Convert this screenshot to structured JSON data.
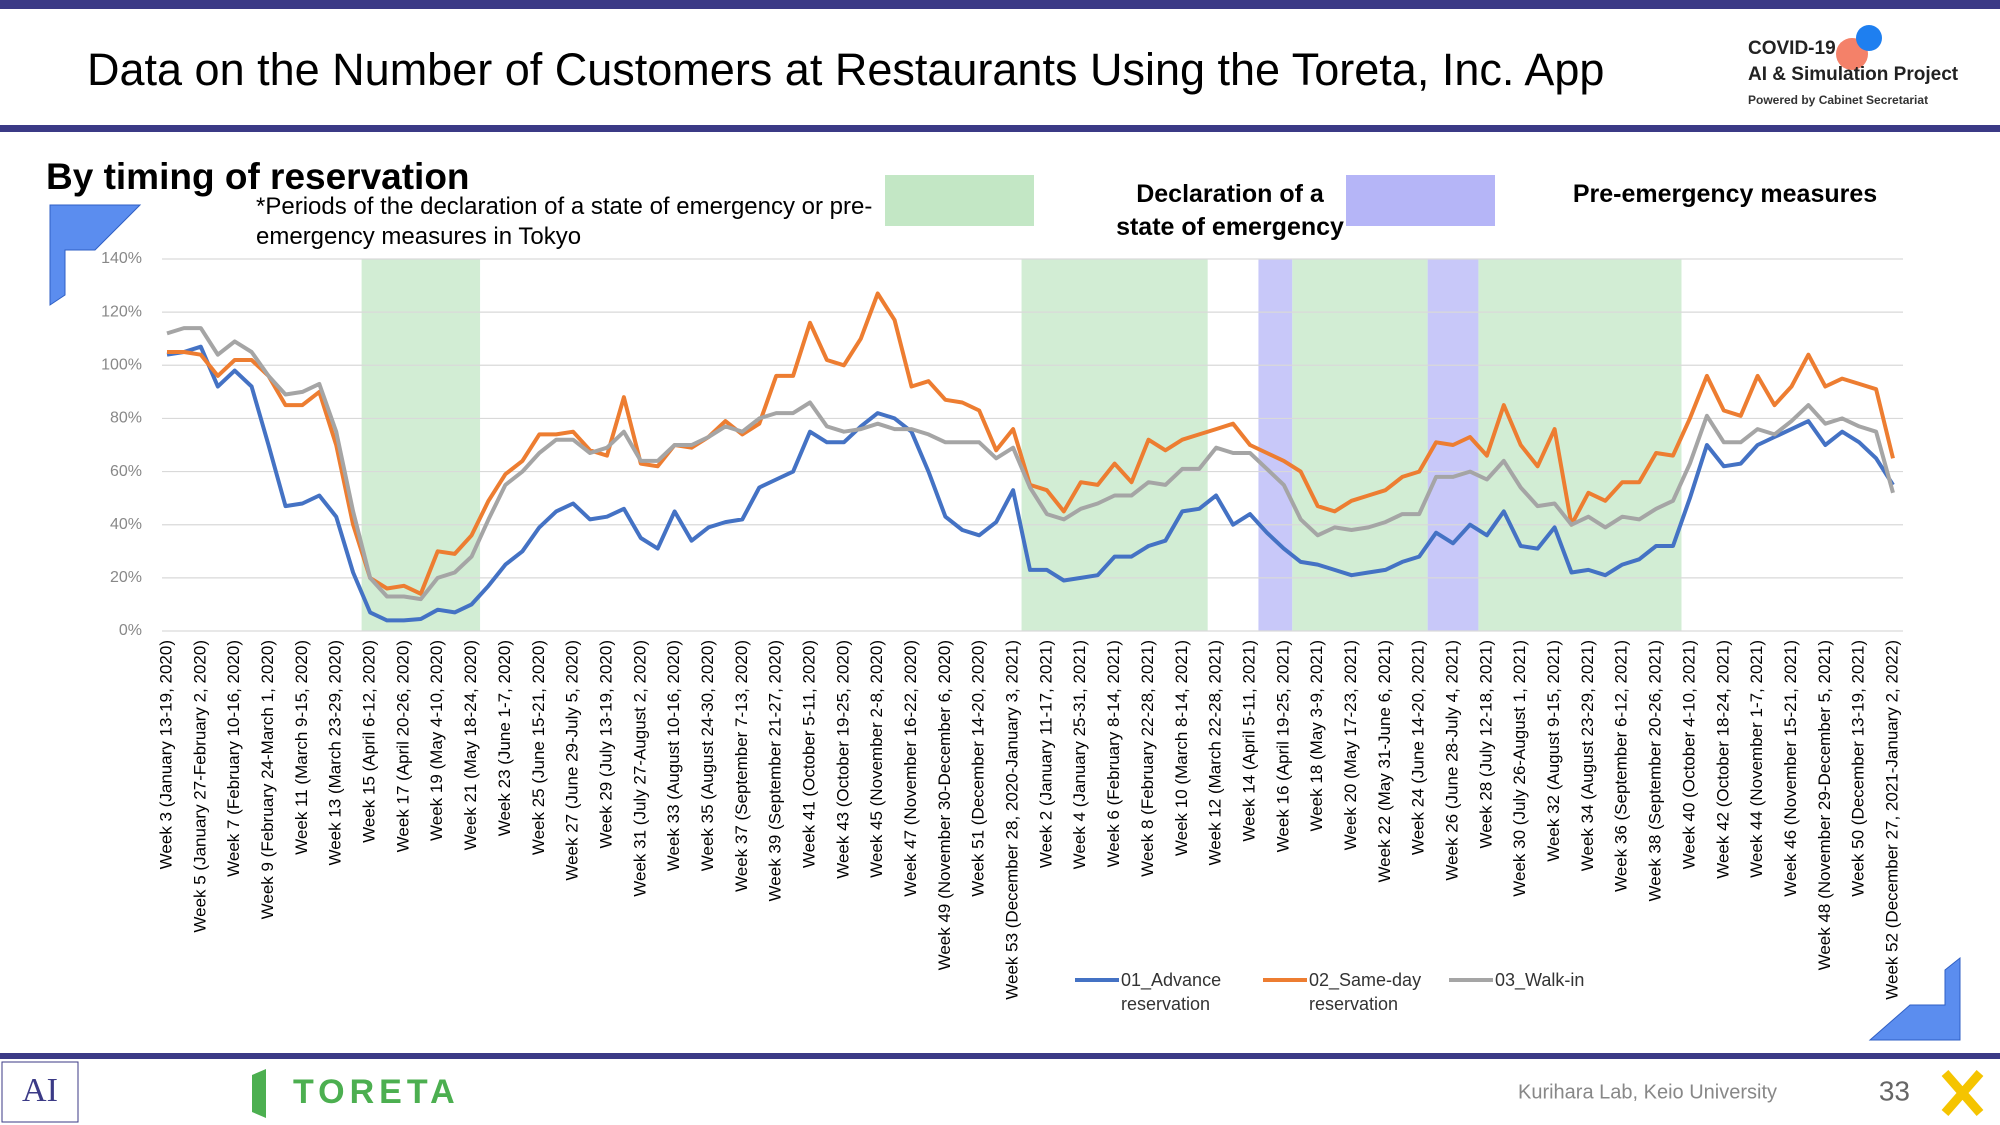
{
  "header": {
    "title": "Data on the Number of Customers at Restaurants Using the Toreta, Inc. App",
    "logo_line1": "COVID-19",
    "logo_line2": "AI & Simulation Project",
    "logo_line3": "Powered by Cabinet Secretariat"
  },
  "footer": {
    "brand": "TORETA",
    "credit": "Kurihara Lab, Keio University",
    "page": "33"
  },
  "chart_data": {
    "type": "line",
    "title": "By timing of reservation",
    "note": "*Periods of the declaration of a state of emergency or pre-emergency measures in Tokyo",
    "period_legend": [
      {
        "label": "Declaration of a state of emergency",
        "color": "#c3e7c5"
      },
      {
        "label": "Pre-emergency measures",
        "color": "#b5b5f7"
      }
    ],
    "periods": [
      {
        "kind": 0,
        "start": 12,
        "end": 18
      },
      {
        "kind": 0,
        "start": 51,
        "end": 61
      },
      {
        "kind": 1,
        "start": 65,
        "end": 66
      },
      {
        "kind": 0,
        "start": 67,
        "end": 74
      },
      {
        "kind": 1,
        "start": 75,
        "end": 77
      },
      {
        "kind": 0,
        "start": 78,
        "end": 89
      }
    ],
    "ylim": [
      0,
      140
    ],
    "yticks": [
      {
        "value": 0,
        "label": "0%"
      },
      {
        "value": 20,
        "label": "20%"
      },
      {
        "value": 40,
        "label": "40%"
      },
      {
        "value": 60,
        "label": "60%"
      },
      {
        "value": 80,
        "label": "80%"
      },
      {
        "value": 100,
        "label": "100%"
      },
      {
        "value": 120,
        "label": "120%"
      },
      {
        "value": 140,
        "label": "140%"
      }
    ],
    "grid": true,
    "categories": [
      "Week 3 (January 13-19, 2020)",
      null,
      "Week 5 (January 27-February 2, 2020)",
      null,
      "Week 7 (February 10-16, 2020)",
      null,
      "Week 9 (February 24-March 1, 2020)",
      null,
      "Week 11 (March 9-15, 2020)",
      null,
      "Week 13 (March 23-29, 2020)",
      null,
      "Week 15 (April 6-12, 2020)",
      null,
      "Week 17 (April 20-26, 2020)",
      null,
      "Week 19 (May 4-10, 2020)",
      null,
      "Week 21 (May 18-24, 2020)",
      null,
      "Week 23 (June 1-7, 2020)",
      null,
      "Week 25 (June 15-21, 2020)",
      null,
      "Week 27 (June 29-July 5, 2020)",
      null,
      "Week 29 (July 13-19, 2020)",
      null,
      "Week 31 (July 27-August 2, 2020)",
      null,
      "Week 33 (August 10-16, 2020)",
      null,
      "Week 35 (August 24-30, 2020)",
      null,
      "Week 37 (September 7-13, 2020)",
      null,
      "Week 39 (September 21-27, 2020)",
      null,
      "Week 41 (October 5-11, 2020)",
      null,
      "Week 43 (October 19-25, 2020)",
      null,
      "Week 45 (November 2-8, 2020)",
      null,
      "Week 47 (November 16-22, 2020)",
      null,
      "Week 49 (November 30-December 6, 2020)",
      null,
      "Week 51 (December 14-20, 2020)",
      null,
      "Week 53 (December 28, 2020-January 3, 2021)",
      null,
      "Week 2 (January 11-17, 2021)",
      null,
      "Week 4 (January 25-31, 2021)",
      null,
      "Week 6 (February 8-14, 2021)",
      null,
      "Week 8 (February 22-28, 2021)",
      null,
      "Week 10 (March 8-14, 2021)",
      null,
      "Week 12 (March 22-28, 2021)",
      null,
      "Week 14 (April 5-11, 2021)",
      null,
      "Week 16 (April 19-25, 2021)",
      null,
      "Week 18 (May 3-9, 2021)",
      null,
      "Week 20 (May 17-23, 2021)",
      null,
      "Week 22 (May 31-June 6, 2021)",
      null,
      "Week 24 (June 14-20, 2021)",
      null,
      "Week 26 (June 28-July 4, 2021)",
      null,
      "Week 28 (July 12-18, 2021)",
      null,
      "Week 30 (July 26-August 1, 2021)",
      null,
      "Week 32 (August 9-15, 2021)",
      null,
      "Week 34 (August 23-29, 2021)",
      null,
      "Week 36 (September 6-12, 2021)",
      null,
      "Week 38 (September 20-26, 2021)",
      null,
      "Week 40 (October 4-10, 2021)",
      null,
      "Week 42 (October 18-24, 2021)",
      null,
      "Week 44 (November 1-7, 2021)",
      null,
      "Week 46 (November 15-21, 2021)",
      null,
      "Week 48 (November 29-December 5, 2021)",
      null,
      "Week 50 (December 13-19, 2021)",
      null,
      "Week 52 (December 27, 2021-January 2, 2022)"
    ],
    "series": [
      {
        "name": "01_Advance reservation",
        "color": "#4472c4",
        "values": [
          104,
          105,
          107,
          92,
          98,
          92,
          70,
          47,
          48,
          51,
          43,
          22,
          7,
          4,
          4,
          4.5,
          8,
          7,
          10,
          17,
          25,
          30,
          39,
          45,
          48,
          42,
          43,
          46,
          35,
          31,
          45,
          34,
          39,
          41,
          42,
          54,
          57,
          60,
          75,
          71,
          71,
          77,
          82,
          80,
          75,
          60,
          43,
          38,
          36,
          41,
          53,
          23,
          23,
          19,
          20,
          21,
          28,
          28,
          32,
          34,
          45,
          46,
          51,
          40,
          44,
          37,
          31,
          26,
          25,
          23,
          21,
          22,
          23,
          26,
          28,
          37,
          33,
          40,
          36,
          45,
          32,
          31,
          39,
          22,
          23,
          21,
          25,
          27,
          32,
          32,
          50,
          70,
          62,
          63,
          70,
          73,
          76,
          79,
          70,
          75,
          71,
          65,
          55
        ]
      },
      {
        "name": "02_Same-day reservation",
        "color": "#ed7d31",
        "values": [
          105,
          105,
          104,
          96,
          102,
          102,
          96,
          85,
          85,
          90,
          70,
          40,
          20,
          16,
          17,
          14,
          30,
          29,
          36,
          49,
          59,
          64,
          74,
          74,
          75,
          68,
          66,
          88,
          63,
          62,
          70,
          69,
          73,
          79,
          74,
          78,
          96,
          96,
          116,
          102,
          100,
          110,
          127,
          117,
          92,
          94,
          87,
          86,
          83,
          68,
          76,
          55,
          53,
          45,
          56,
          55,
          63,
          56,
          72,
          68,
          72,
          74,
          76,
          78,
          70,
          67,
          64,
          60,
          47,
          45,
          49,
          51,
          53,
          58,
          60,
          71,
          70,
          73,
          66,
          85,
          70,
          62,
          76,
          40,
          52,
          49,
          56,
          56,
          67,
          66,
          80,
          96,
          83,
          81,
          96,
          85,
          92,
          104,
          92,
          95,
          93,
          91,
          65
        ]
      },
      {
        "name": "03_Walk-in",
        "color": "#a5a5a5",
        "values": [
          112,
          114,
          114,
          104,
          109,
          105,
          96,
          89,
          90,
          93,
          75,
          45,
          20,
          13,
          13,
          12,
          20,
          22,
          28,
          42,
          55,
          60,
          67,
          72,
          72,
          67,
          69,
          75,
          64,
          64,
          70,
          70,
          73,
          77,
          75,
          80,
          82,
          82,
          86,
          77,
          75,
          76,
          78,
          76,
          76,
          74,
          71,
          71,
          71,
          65,
          69,
          54,
          44,
          42,
          46,
          48,
          51,
          51,
          56,
          55,
          61,
          61,
          69,
          67,
          67,
          61,
          55,
          42,
          36,
          39,
          38,
          39,
          41,
          44,
          44,
          58,
          58,
          60,
          57,
          64,
          54,
          47,
          48,
          40,
          43,
          39,
          43,
          42,
          46,
          49,
          63,
          81,
          71,
          71,
          76,
          74,
          79,
          85,
          78,
          80,
          77,
          75,
          52
        ]
      }
    ]
  }
}
